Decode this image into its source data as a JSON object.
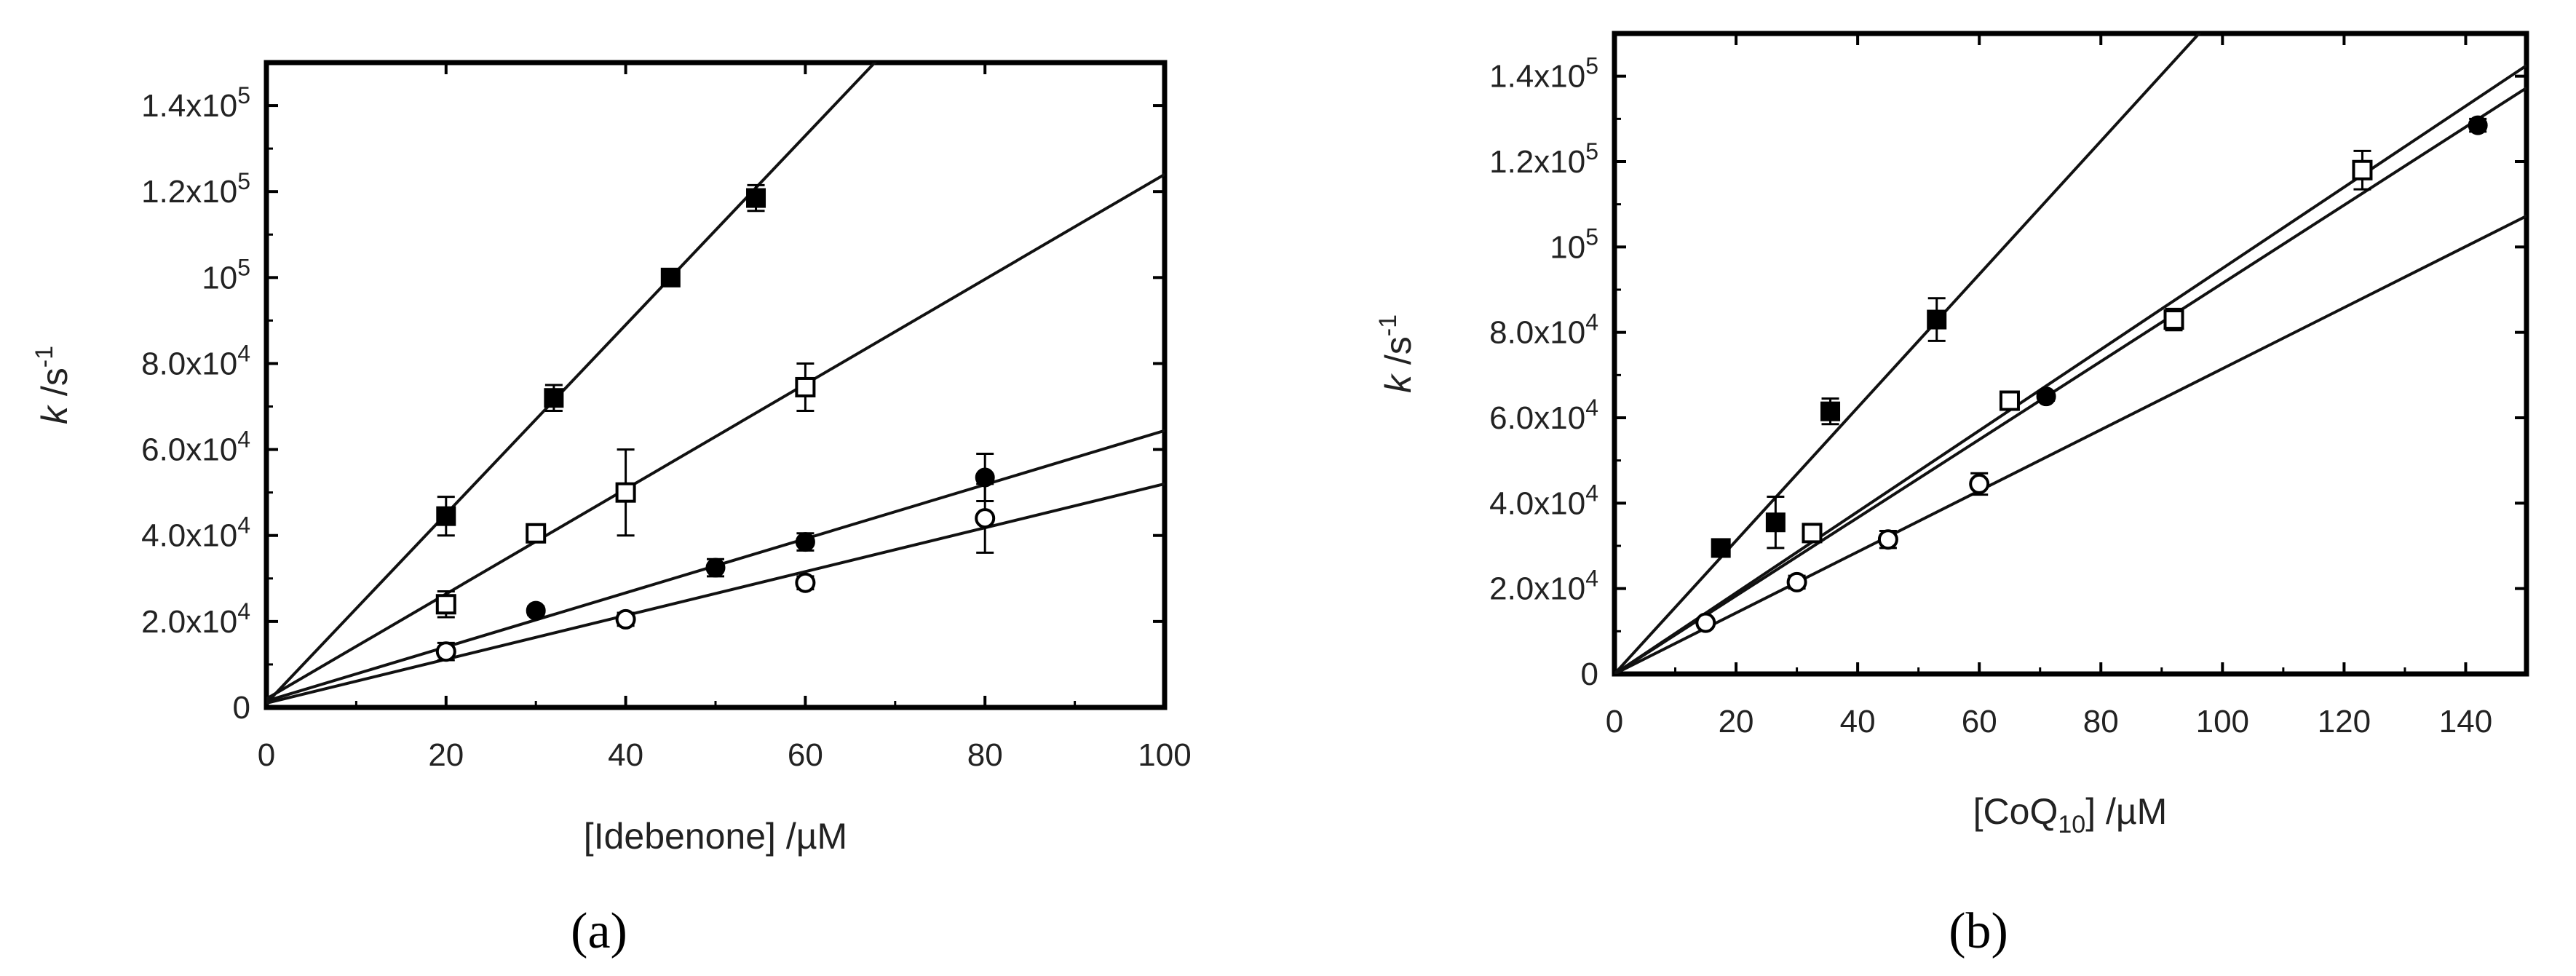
{
  "chart_data": [
    {
      "type": "scatter",
      "panel_label": "(a)",
      "xlabel": "[Idebenone] /µM",
      "ylabel": "k /s-1",
      "xlim": [
        0,
        100
      ],
      "ylim": [
        0,
        150000
      ],
      "x_ticks": [
        0,
        20,
        40,
        60,
        80,
        100
      ],
      "x_tick_labels": [
        "0",
        "20",
        "40",
        "60",
        "80",
        "100"
      ],
      "y_ticks": [
        0,
        20000,
        40000,
        60000,
        80000,
        100000,
        120000,
        140000
      ],
      "y_tick_labels": [
        {
          "base": "0",
          "exp": ""
        },
        {
          "base": "2.0x10",
          "exp": "4"
        },
        {
          "base": "4.0x10",
          "exp": "4"
        },
        {
          "base": "6.0x10",
          "exp": "4"
        },
        {
          "base": "8.0x10",
          "exp": "4"
        },
        {
          "base": "10",
          "exp": "5"
        },
        {
          "base": "1.2x10",
          "exp": "5"
        },
        {
          "base": "1.4x10",
          "exp": "5"
        }
      ],
      "series": [
        {
          "marker": "filled-square",
          "x": [
            20,
            32,
            45,
            54.5
          ],
          "y": [
            44500,
            72000,
            100000,
            118500
          ],
          "err": [
            4500,
            3000,
            1200,
            3000
          ],
          "fit": {
            "intercept": 1000,
            "slope": 2200
          }
        },
        {
          "marker": "open-square",
          "x": [
            20,
            30,
            40,
            60
          ],
          "y": [
            24000,
            40500,
            50000,
            74500
          ],
          "err": [
            3000,
            2000,
            10000,
            5500
          ],
          "fit": {
            "intercept": 2000,
            "slope": 1220
          }
        },
        {
          "marker": "filled-circle",
          "x": [
            30,
            50,
            60,
            80
          ],
          "y": [
            22500,
            32500,
            38500,
            53500
          ],
          "err": [
            1000,
            2000,
            2000,
            5500
          ],
          "fit": {
            "intercept": 1500,
            "slope": 629
          }
        },
        {
          "marker": "open-circle",
          "x": [
            20,
            40,
            60,
            80
          ],
          "y": [
            13000,
            20500,
            29000,
            44000
          ],
          "err": [
            2000,
            1500,
            1500,
            8000
          ],
          "fit": {
            "intercept": 1000,
            "slope": 510
          }
        }
      ]
    },
    {
      "type": "scatter",
      "panel_label": "(b)",
      "xlabel": "[CoQ10] /µM",
      "ylabel": "k /s-1",
      "xlim": [
        0,
        150
      ],
      "ylim": [
        0,
        150000
      ],
      "x_ticks": [
        0,
        20,
        40,
        60,
        80,
        100,
        120,
        140
      ],
      "x_tick_labels": [
        "0",
        "20",
        "40",
        "60",
        "80",
        "100",
        "120",
        "140"
      ],
      "y_ticks": [
        0,
        20000,
        40000,
        60000,
        80000,
        100000,
        120000,
        140000
      ],
      "y_tick_labels": [
        {
          "base": "0",
          "exp": ""
        },
        {
          "base": "2.0x10",
          "exp": "4"
        },
        {
          "base": "4.0x10",
          "exp": "4"
        },
        {
          "base": "6.0x10",
          "exp": "4"
        },
        {
          "base": "8.0x10",
          "exp": "4"
        },
        {
          "base": "10",
          "exp": "5"
        },
        {
          "base": "1.2x10",
          "exp": "5"
        },
        {
          "base": "1.4x10",
          "exp": "5"
        }
      ],
      "series": [
        {
          "marker": "filled-square",
          "x": [
            17.5,
            26.5,
            35.5,
            53
          ],
          "y": [
            29500,
            35500,
            61500,
            83000
          ],
          "err": [
            1500,
            6000,
            3000,
            5000
          ],
          "fit": {
            "intercept": 0,
            "slope": 1560
          }
        },
        {
          "marker": "open-square",
          "x": [
            32.5,
            65,
            92,
            123
          ],
          "y": [
            33000,
            64000,
            83000,
            118000
          ],
          "err": [
            1500,
            2000,
            2500,
            4500
          ],
          "fit": {
            "intercept": 0,
            "slope": 950
          }
        },
        {
          "marker": "filled-circle",
          "x": [
            71,
            142
          ],
          "y": [
            65000,
            128500
          ],
          "err": [
            1000,
            1500
          ],
          "fit": {
            "intercept": 0,
            "slope": 915
          }
        },
        {
          "marker": "open-circle",
          "x": [
            15,
            30,
            45,
            60
          ],
          "y": [
            12000,
            21500,
            31500,
            44500
          ],
          "err": [
            1000,
            1500,
            2000,
            2500
          ],
          "fit": {
            "intercept": 0,
            "slope": 715
          }
        }
      ]
    }
  ]
}
